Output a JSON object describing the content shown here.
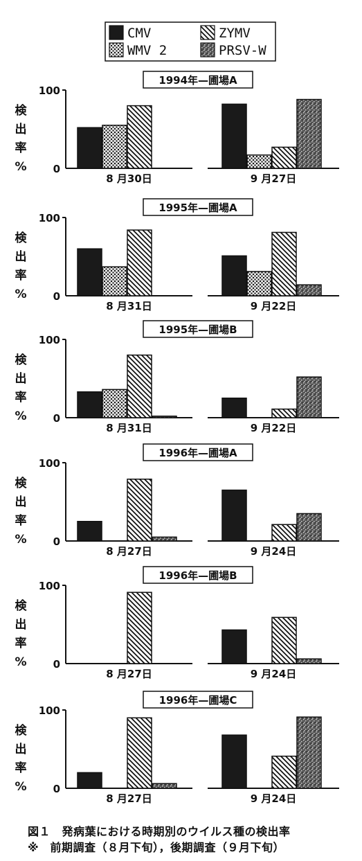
{
  "legend": [
    {
      "key": "cmv",
      "label": "CMV",
      "pattern": "solid"
    },
    {
      "key": "zymv",
      "label": "ZYMV",
      "pattern": "hatch"
    },
    {
      "key": "wmv2",
      "label": "WMV 2",
      "pattern": "dots"
    },
    {
      "key": "prsvw",
      "label": "PRSV-W",
      "pattern": "stipple"
    }
  ],
  "colors": {
    "ink": "#111111",
    "fill_dark": "#1a1a1a",
    "dots_bg": "#d9d9d9",
    "stipple_bg": "#4a4a4a"
  },
  "ylabel": [
    "検",
    "出",
    "率",
    "%"
  ],
  "chart_data": [
    {
      "type": "bar",
      "title": "1994年—圃場A",
      "ylim": [
        0,
        100
      ],
      "yticks": [
        "0",
        "100"
      ],
      "groups": [
        {
          "label": "8 月30日",
          "values": {
            "cmv": 52,
            "wmv2": 55,
            "zymv": 80
          }
        },
        {
          "label": "9 月27日",
          "values": {
            "cmv": 82,
            "wmv2": 17,
            "zymv": 27,
            "prsvw": 88
          }
        }
      ]
    },
    {
      "type": "bar",
      "title": "1995年—圃場A",
      "ylim": [
        0,
        100
      ],
      "yticks": [
        "0",
        "100"
      ],
      "groups": [
        {
          "label": "8 月31日",
          "values": {
            "cmv": 60,
            "wmv2": 37,
            "zymv": 84
          }
        },
        {
          "label": "9 月22日",
          "values": {
            "cmv": 51,
            "wmv2": 31,
            "zymv": 81,
            "prsvw": 14
          }
        }
      ]
    },
    {
      "type": "bar",
      "title": "1995年—圃場B",
      "ylim": [
        0,
        100
      ],
      "yticks": [
        "0",
        "100"
      ],
      "groups": [
        {
          "label": "8 月31日",
          "values": {
            "cmv": 33,
            "wmv2": 36,
            "zymv": 80,
            "prsvw": 2
          }
        },
        {
          "label": "9 月22日",
          "values": {
            "cmv": 25,
            "zymv": 11,
            "prsvw": 52
          }
        }
      ]
    },
    {
      "type": "bar",
      "title": "1996年—圃場A",
      "ylim": [
        0,
        100
      ],
      "yticks": [
        "0",
        "100"
      ],
      "groups": [
        {
          "label": "8 月27日",
          "values": {
            "cmv": 25,
            "zymv": 79,
            "prsvw": 5
          }
        },
        {
          "label": "9 月24日",
          "values": {
            "cmv": 65,
            "zymv": 21,
            "prsvw": 35
          }
        }
      ]
    },
    {
      "type": "bar",
      "title": "1996年—圃場B",
      "ylim": [
        0,
        100
      ],
      "yticks": [
        "0",
        "100"
      ],
      "groups": [
        {
          "label": "8 月27日",
          "values": {
            "zymv": 91
          }
        },
        {
          "label": "9 月24日",
          "values": {
            "cmv": 43,
            "zymv": 59,
            "prsvw": 6
          }
        }
      ]
    },
    {
      "type": "bar",
      "title": "1996年—圃場C",
      "ylim": [
        0,
        100
      ],
      "yticks": [
        "0",
        "100"
      ],
      "groups": [
        {
          "label": "8 月27日",
          "values": {
            "cmv": 20,
            "zymv": 90,
            "prsvw": 6
          }
        },
        {
          "label": "9 月24日",
          "values": {
            "cmv": 68,
            "zymv": 41,
            "prsvw": 91
          }
        }
      ]
    }
  ],
  "caption": {
    "line1": "図１　発病葉における時期別のウイルス種の検出率",
    "line2": "※　前期調査（８月下旬），後期調査（９月下旬）"
  }
}
